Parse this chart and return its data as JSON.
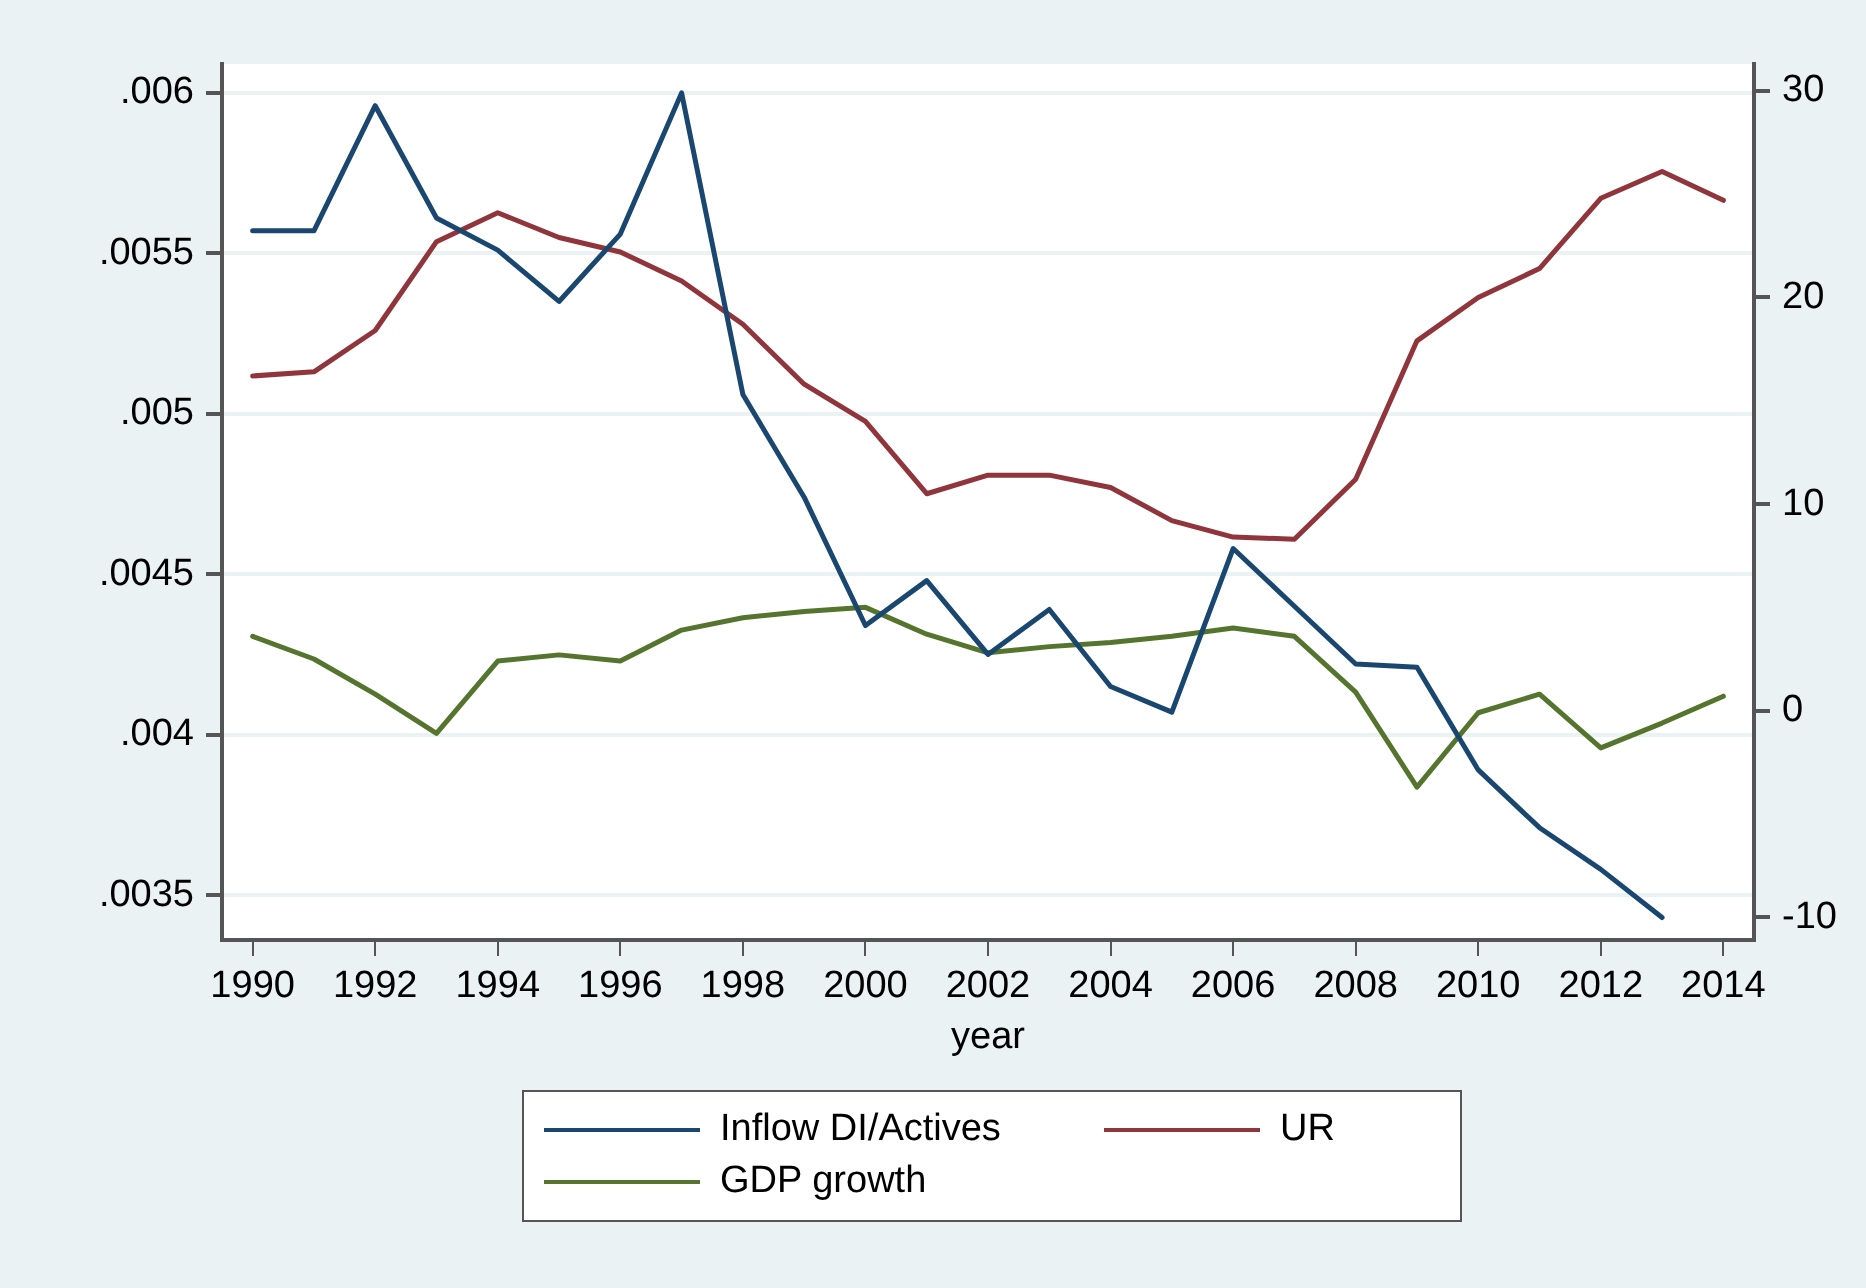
{
  "chart_data": {
    "type": "line",
    "xlabel": "year",
    "x": [
      1990,
      1991,
      1992,
      1993,
      1994,
      1995,
      1996,
      1997,
      1998,
      1999,
      2000,
      2001,
      2002,
      2003,
      2004,
      2005,
      2006,
      2007,
      2008,
      2009,
      2010,
      2011,
      2012,
      2013,
      2014
    ],
    "xlim": [
      1989.5,
      2014.5
    ],
    "xticks": [
      1990,
      1992,
      1994,
      1996,
      1998,
      2000,
      2002,
      2004,
      2006,
      2008,
      2010,
      2012,
      2014
    ],
    "ylim": [
      0.00336,
      0.00609
    ],
    "yticks": [
      {
        "value": 0.0035,
        "label": ".0035"
      },
      {
        "value": 0.004,
        "label": ".004"
      },
      {
        "value": 0.0045,
        "label": ".0045"
      },
      {
        "value": 0.005,
        "label": ".005"
      },
      {
        "value": 0.0055,
        "label": ".0055"
      },
      {
        "value": 0.006,
        "label": ".006"
      }
    ],
    "y2lim": [
      -11.1,
      31.3
    ],
    "y2ticks": [
      -10,
      0,
      10,
      20,
      30
    ],
    "grid": "y",
    "legend": "bottom",
    "marker": "none",
    "line_style": "solid",
    "series": [
      {
        "name": "Inflow DI/Actives",
        "color": "#1a476f",
        "values": [
          0.00557,
          0.00557,
          0.00596,
          0.00561,
          0.00551,
          0.00535,
          0.00556,
          0.006,
          0.00506,
          0.00474,
          0.00434,
          0.00448,
          0.00425,
          0.00439,
          0.00415,
          0.00407,
          0.00458,
          0.0044,
          0.00422,
          0.00421,
          0.00389,
          0.00371,
          0.00358,
          0.00343,
          null
        ]
      },
      {
        "name": "UR",
        "color": "#90353b",
        "axis": "y2",
        "values": [
          16.2,
          16.4,
          18.4,
          22.7,
          24.1,
          22.9,
          22.2,
          20.8,
          18.7,
          15.8,
          14.0,
          10.5,
          11.4,
          11.4,
          10.8,
          9.2,
          8.4,
          8.3,
          11.2,
          17.9,
          20.0,
          21.4,
          24.8,
          26.1,
          24.7
        ]
      },
      {
        "name": "GDP growth",
        "color": "#55752f",
        "axis": "y2",
        "values": [
          3.6,
          2.5,
          0.8,
          -1.1,
          2.4,
          2.7,
          2.4,
          3.9,
          4.5,
          4.8,
          5.0,
          3.7,
          2.8,
          3.1,
          3.3,
          3.6,
          4.0,
          3.6,
          0.9,
          -3.7,
          -0.1,
          0.8,
          -1.8,
          -0.6,
          0.7
        ]
      }
    ]
  }
}
